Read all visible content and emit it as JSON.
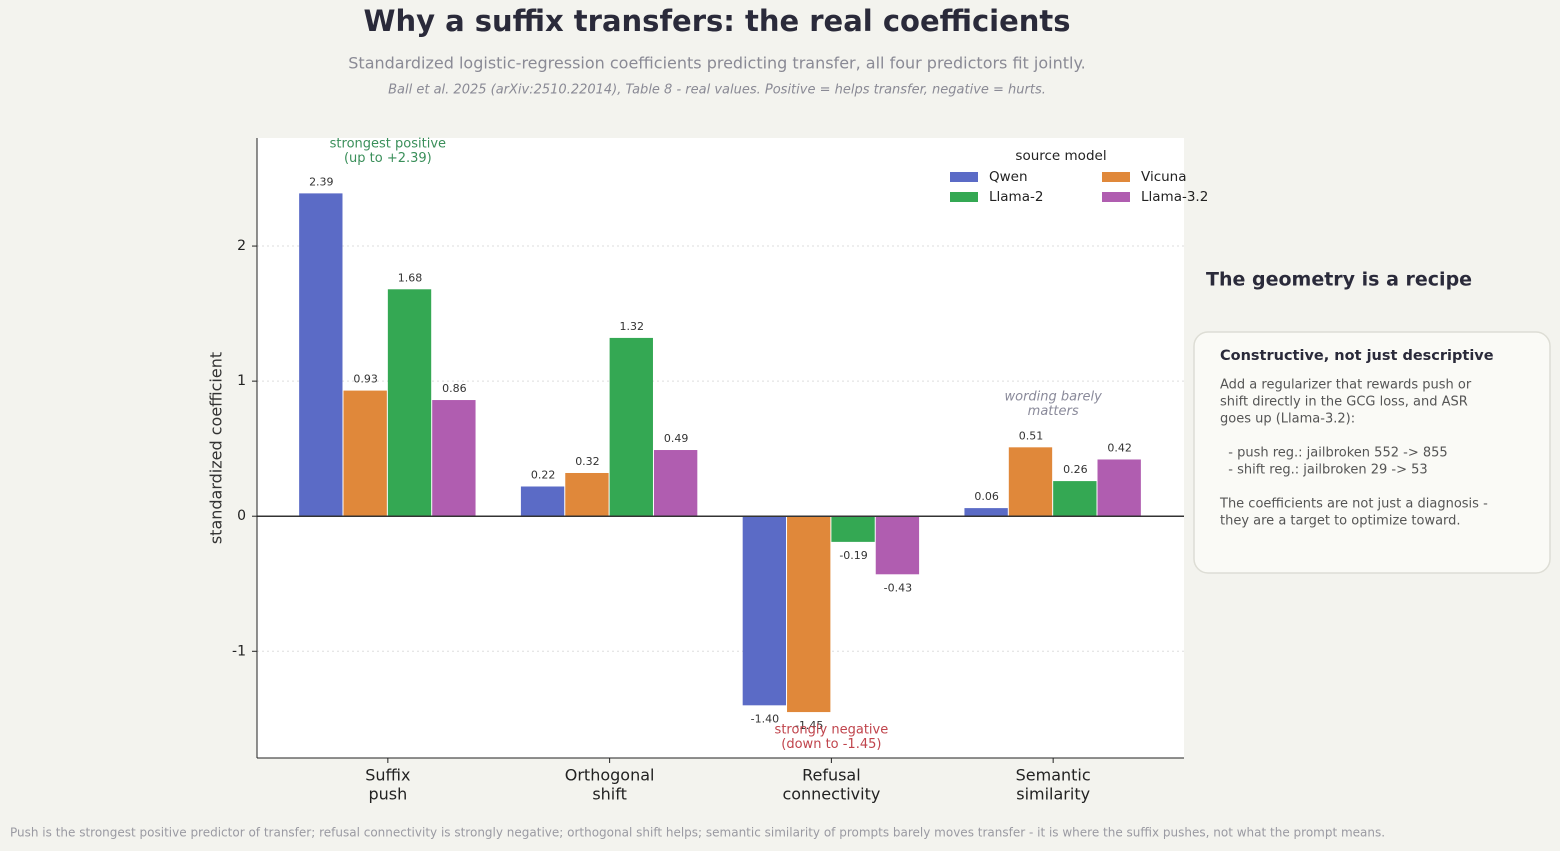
{
  "header": {
    "title": "Why a suffix transfers: the real coefficients",
    "subtitle": "Standardized logistic-regression coefficients predicting transfer, all four predictors fit jointly.",
    "source": "Ball et al. 2025 (arXiv:2510.22014), Table 8 - real values. Positive = helps transfer, negative = hurts."
  },
  "chart_data": {
    "type": "bar",
    "ylabel": "standardized coefficient",
    "categories": [
      [
        "Suffix",
        "push"
      ],
      [
        "Orthogonal",
        "shift"
      ],
      [
        "Refusal",
        "connectivity"
      ],
      [
        "Semantic",
        "similarity"
      ]
    ],
    "series": [
      {
        "name": "Qwen",
        "color": "#5b6bc6",
        "values": [
          2.39,
          0.22,
          -1.4,
          0.06
        ],
        "value_labels": [
          "2.39",
          "0.22",
          "-1.40",
          "0.06"
        ]
      },
      {
        "name": "Vicuna",
        "color": "#e0883a",
        "values": [
          0.93,
          0.32,
          -1.45,
          0.51
        ],
        "value_labels": [
          "0.93",
          "0.32",
          "-1.45",
          "0.51"
        ]
      },
      {
        "name": "Llama-2",
        "color": "#34a853",
        "values": [
          1.68,
          1.32,
          -0.19,
          0.26
        ],
        "value_labels": [
          "1.68",
          "1.32",
          "-0.19",
          "0.26"
        ]
      },
      {
        "name": "Llama-3.2",
        "color": "#b05db0",
        "values": [
          0.86,
          0.49,
          -0.43,
          0.42
        ],
        "value_labels": [
          "0.86",
          "0.49",
          "-0.43",
          "0.42"
        ]
      }
    ],
    "ylim": [
      -1.79,
      2.8
    ],
    "yticks": [
      -1,
      0,
      1,
      2
    ],
    "grid": true,
    "legend": {
      "title": "source model",
      "loc": "upper right"
    },
    "annotations": [
      {
        "lines": [
          "strongest positive",
          "(up to +2.39)"
        ],
        "color": "#3a8f5a"
      },
      {
        "lines": [
          "strongly negative",
          "(down to -1.45)"
        ],
        "color": "#c0444c"
      },
      {
        "lines": [
          "wording barely",
          "matters"
        ],
        "color": "#8a8a9a"
      }
    ]
  },
  "panel": {
    "heading": "The geometry is a recipe",
    "card_title": "Constructive, not just descriptive",
    "paragraphs": [
      [
        "Add a regularizer that rewards push or",
        "shift directly in the GCG loss, and ASR",
        "goes up (Llama-3.2):"
      ],
      [
        "  - push reg.: jailbroken 552 -> 855",
        "  - shift reg.: jailbroken 29 -> 53"
      ],
      [
        "The coefficients are not just a diagnosis -",
        "they are a target to optimize toward."
      ]
    ]
  },
  "footer": "Push is the strongest positive predictor of transfer; refusal connectivity is strongly negative; orthogonal shift helps; semantic similarity of prompts barely moves transfer - it is where the suffix pushes, not what the prompt means."
}
